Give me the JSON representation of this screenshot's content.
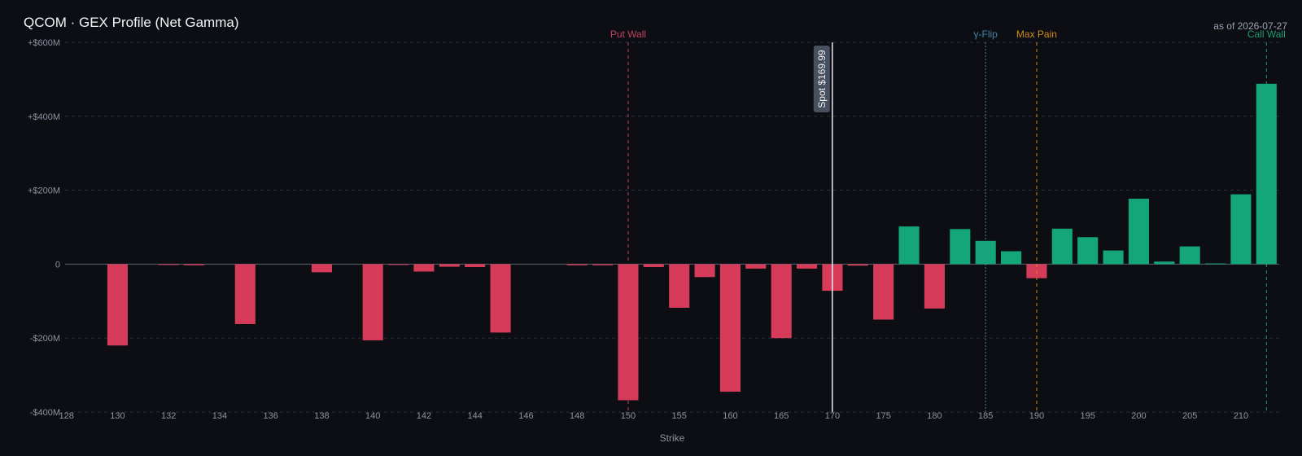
{
  "chart_data": {
    "type": "bar",
    "title": "QCOM · GEX Profile (Net Gamma)",
    "as_of": "as of 2026-07-27",
    "xlabel": "Strike",
    "ylabel": "",
    "ylim": [
      -400,
      600
    ],
    "y_unit": "$M",
    "y_ticks": [
      {
        "value": 600,
        "label": "+$600M"
      },
      {
        "value": 400,
        "label": "+$400M"
      },
      {
        "value": 200,
        "label": "+$200M"
      },
      {
        "value": 0,
        "label": "0"
      },
      {
        "value": -200,
        "label": "-$200M"
      },
      {
        "value": -400,
        "label": "-$400M"
      }
    ],
    "categories": [
      "128",
      "129",
      "130",
      "131",
      "132",
      "133",
      "134",
      "135",
      "136",
      "137",
      "138",
      "139",
      "140",
      "141",
      "142",
      "143",
      "144",
      "145",
      "146",
      "147",
      "148",
      "149",
      "150",
      "152.5",
      "155",
      "157.5",
      "160",
      "162.5",
      "165",
      "167.5",
      "170",
      "172.5",
      "175",
      "177.5",
      "180",
      "182.5",
      "185",
      "187.5",
      "190",
      "192.5",
      "195",
      "197.5",
      "200",
      "202.5",
      "205",
      "207.5",
      "210",
      "212.5"
    ],
    "x_tick_labels": [
      "128",
      "",
      "130",
      "",
      "132",
      "",
      "134",
      "",
      "136",
      "",
      "138",
      "",
      "140",
      "",
      "142",
      "",
      "144",
      "",
      "146",
      "",
      "148",
      "",
      "150",
      "",
      "155",
      "",
      "160",
      "",
      "165",
      "",
      "170",
      "",
      "175",
      "",
      "180",
      "",
      "185",
      "",
      "190",
      "",
      "195",
      "",
      "200",
      "",
      "205",
      "",
      "210",
      ""
    ],
    "values": [
      0,
      0,
      -220,
      0,
      -2,
      -3,
      0,
      -162,
      0,
      0,
      -22,
      0,
      -206,
      -2,
      -20,
      -7,
      -8,
      -185,
      0,
      0,
      -3,
      -3,
      -368,
      -8,
      -118,
      -35,
      -345,
      -12,
      -200,
      -12,
      -72,
      -4,
      -150,
      102,
      -120,
      95,
      63,
      35,
      -38,
      96,
      73,
      37,
      177,
      7,
      48,
      2,
      189,
      488
    ],
    "colors": {
      "positive": "#14a679",
      "negative": "#d63c5a",
      "background": "#0c0e14",
      "grid": "#2a2f3a",
      "axis_text": "#8c93a1"
    },
    "markers": [
      {
        "name": "Put Wall",
        "position": 150,
        "color": "#c2415f",
        "style": "dashed"
      },
      {
        "name": "γ-Flip",
        "position": 185,
        "color": "#3f86a9",
        "style": "dotted"
      },
      {
        "name": "Max Pain",
        "position": 190,
        "color": "#d08b17",
        "style": "dashed"
      },
      {
        "name": "Call Wall",
        "position": 212.5,
        "color": "#1d9c6f",
        "style": "dashed"
      }
    ],
    "spot": {
      "label": "Spot $169.99",
      "value": 169.99,
      "color": "#e8ecf2"
    },
    "grid": true,
    "legend": "none"
  }
}
